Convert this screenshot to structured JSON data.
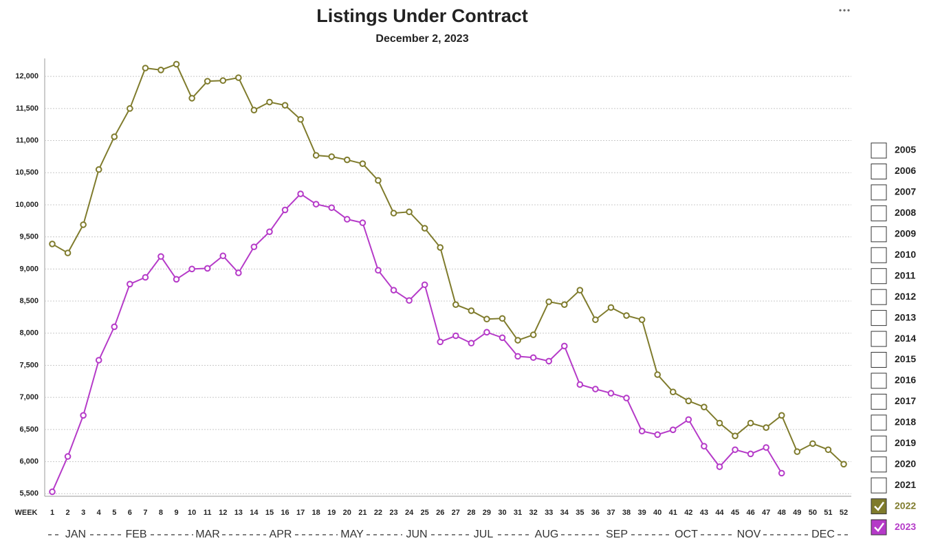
{
  "chart_data": {
    "type": "line",
    "title": "Listings Under Contract",
    "subtitle": "December 2, 2023",
    "x_label": "WEEK",
    "categories": [
      "1",
      "2",
      "3",
      "4",
      "5",
      "6",
      "7",
      "8",
      "9",
      "10",
      "11",
      "12",
      "13",
      "14",
      "15",
      "16",
      "17",
      "18",
      "19",
      "20",
      "21",
      "22",
      "23",
      "24",
      "25",
      "26",
      "27",
      "28",
      "29",
      "30",
      "31",
      "32",
      "33",
      "34",
      "35",
      "36",
      "37",
      "38",
      "39",
      "40",
      "41",
      "42",
      "43",
      "44",
      "45",
      "46",
      "47",
      "48",
      "49",
      "50",
      "51",
      "52"
    ],
    "months": [
      "JAN",
      "FEB",
      "MAR",
      "APR",
      "MAY",
      "JUN",
      "JUL",
      "AUG",
      "SEP",
      "OCT",
      "NOV",
      "DEC"
    ],
    "series": [
      {
        "name": "2022",
        "color": "#7f7b2c",
        "values": [
          9390,
          9250,
          9690,
          10550,
          11060,
          11500,
          12130,
          12100,
          12190,
          11660,
          11925,
          11935,
          11980,
          11475,
          11600,
          11550,
          11330,
          10770,
          10750,
          10700,
          10640,
          10380,
          9870,
          9890,
          9635,
          9335,
          8445,
          8350,
          8220,
          8230,
          7890,
          7975,
          8490,
          8445,
          8670,
          8210,
          8400,
          8275,
          8210,
          7355,
          7085,
          6945,
          6850,
          6600,
          6400,
          6600,
          6530,
          6720,
          6155,
          6280,
          6185,
          5960
        ]
      },
      {
        "name": "2023",
        "color": "#b53ac8",
        "values": [
          5530,
          6080,
          6720,
          7580,
          8100,
          8765,
          8870,
          9195,
          8840,
          9000,
          9010,
          9205,
          8940,
          9345,
          9580,
          9920,
          10170,
          10010,
          9955,
          9775,
          9720,
          8980,
          8670,
          8510,
          8755,
          7865,
          7960,
          7845,
          8015,
          7930,
          7640,
          7620,
          7565,
          7800,
          7200,
          7130,
          7065,
          6990,
          6475,
          6420,
          6495,
          6655,
          6240,
          5920,
          6185,
          6120,
          6220,
          5820,
          null,
          null,
          null,
          null
        ]
      }
    ],
    "legend_unchecked": [
      "2005",
      "2006",
      "2007",
      "2008",
      "2009",
      "2010",
      "2011",
      "2012",
      "2013",
      "2014",
      "2015",
      "2016",
      "2017",
      "2018",
      "2019",
      "2020",
      "2021"
    ],
    "ylim": [
      5460,
      12280
    ],
    "yticks": [
      {
        "value": 5500,
        "label": "5,500"
      },
      {
        "value": 6000,
        "label": "6,000"
      },
      {
        "value": 6500,
        "label": "6,500"
      },
      {
        "value": 7000,
        "label": "7,000"
      },
      {
        "value": 7500,
        "label": "7,500"
      },
      {
        "value": 8000,
        "label": "8,000"
      },
      {
        "value": 8500,
        "label": "8,500"
      },
      {
        "value": 9000,
        "label": "9,000"
      },
      {
        "value": 9500,
        "label": "9,500"
      },
      {
        "value": 10000,
        "label": "10,000"
      },
      {
        "value": 10500,
        "label": "10,500"
      },
      {
        "value": 11000,
        "label": "11,000"
      },
      {
        "value": 11500,
        "label": "11,500"
      },
      {
        "value": 12000,
        "label": "12,000"
      }
    ],
    "grid": true
  }
}
